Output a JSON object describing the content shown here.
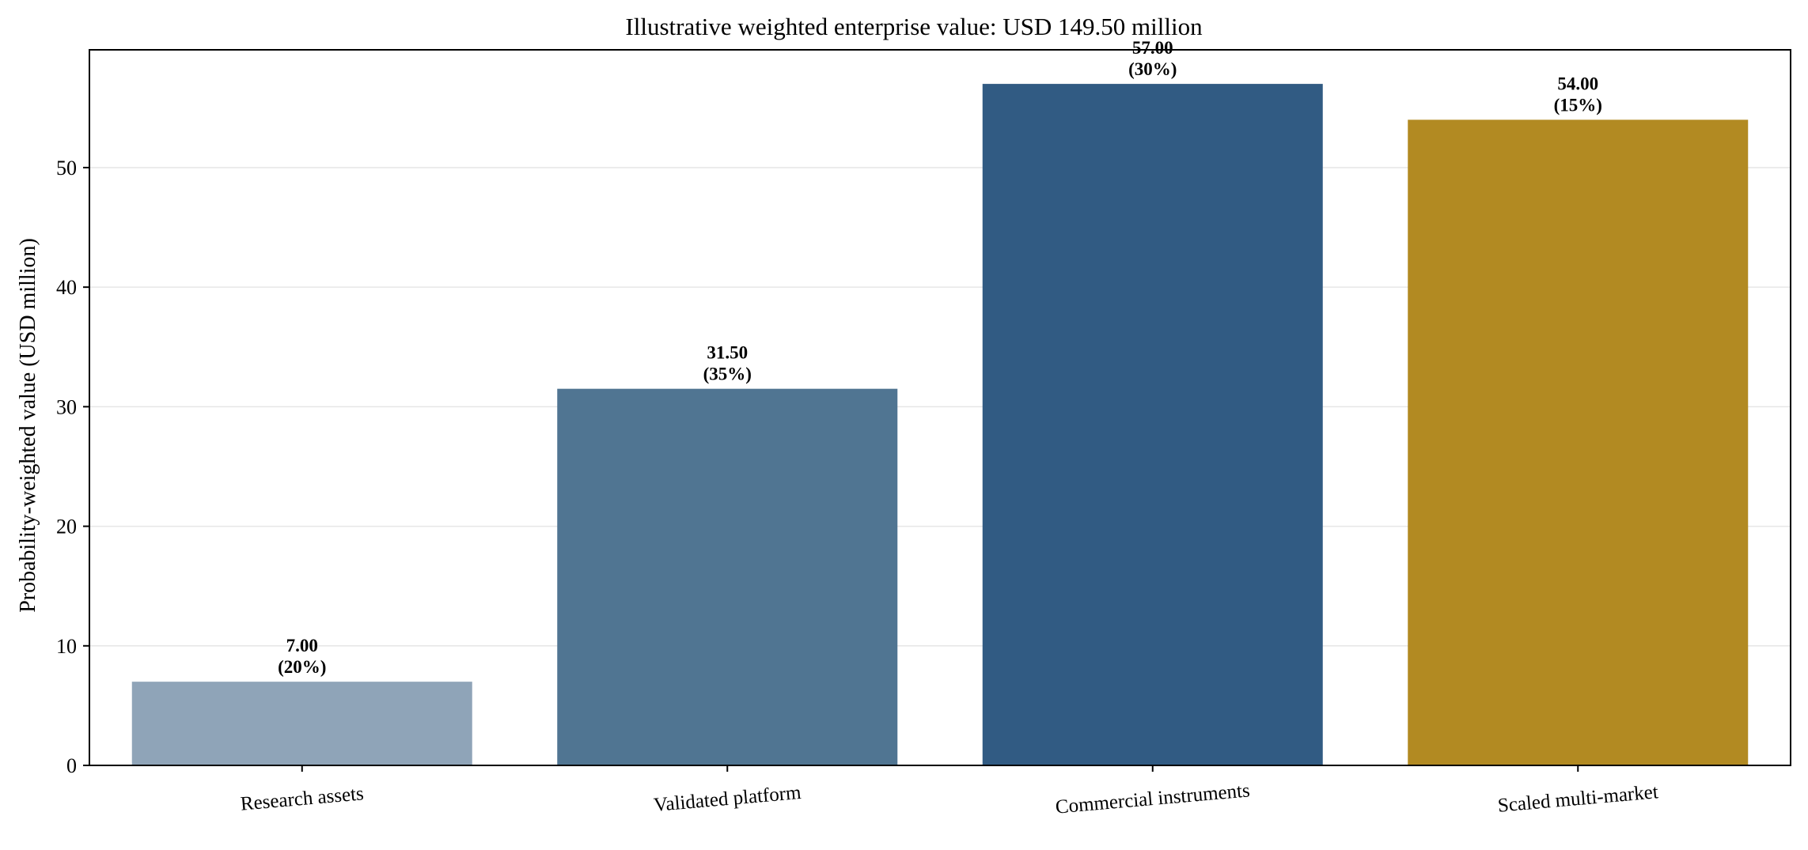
{
  "chart_data": {
    "type": "bar",
    "title": "Illustrative weighted enterprise value: USD 149.50 million",
    "xlabel": "",
    "ylabel": "Probability-weighted value (USD million)",
    "categories": [
      "Research assets",
      "Validated platform",
      "Commercial instruments",
      "Scaled multi-market"
    ],
    "values": [
      7.0,
      31.5,
      57.0,
      54.0
    ],
    "value_labels": [
      "7.00",
      "31.50",
      "57.00",
      "54.00"
    ],
    "weight_labels": [
      "(20%)",
      "(35%)",
      "(30%)",
      "(15%)"
    ],
    "colors": [
      "#8fa4b8",
      "#507592",
      "#315b83",
      "#b28a22"
    ],
    "ylim": [
      0,
      59.85
    ],
    "yticks": [
      0,
      10,
      20,
      30,
      40,
      50
    ],
    "grid": "y-axis",
    "legend": "none"
  }
}
